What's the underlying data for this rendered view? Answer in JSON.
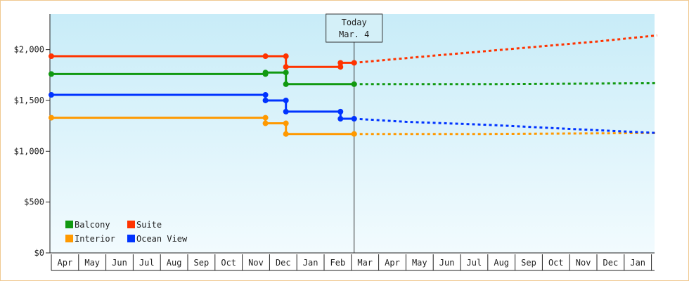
{
  "chart_data": {
    "type": "line",
    "title": "",
    "xlabel": "",
    "ylabel": "",
    "y_ticks": [
      "$0",
      "$500",
      "$1,000",
      "$1,500",
      "$2,000"
    ],
    "y_tick_values": [
      0,
      500,
      1000,
      1500,
      2000
    ],
    "ylim": [
      0,
      2350
    ],
    "months": [
      "Apr",
      "May",
      "Jun",
      "Jul",
      "Aug",
      "Sep",
      "Oct",
      "Nov",
      "Dec",
      "Jan",
      "Feb",
      "Mar",
      "Apr",
      "May",
      "Jun",
      "Jul",
      "Aug",
      "Sep",
      "Oct",
      "Nov",
      "Dec",
      "Jan"
    ],
    "x_unit": "month index from first Apr",
    "xlim": [
      0,
      22.2
    ],
    "today": {
      "label_line1": "Today",
      "label_line2": "Mar. 4",
      "x": 11.1
    },
    "grid": false,
    "legend_position": "bottom-left",
    "series": [
      {
        "name": "Balcony",
        "color": "#119911",
        "history": [
          [
            0,
            1760
          ],
          [
            7.85,
            1760
          ],
          [
            7.85,
            1775
          ],
          [
            8.6,
            1775
          ],
          [
            8.6,
            1660
          ],
          [
            11.1,
            1660
          ]
        ],
        "markers": [
          [
            0,
            1760
          ],
          [
            7.85,
            1760
          ],
          [
            7.85,
            1775
          ],
          [
            8.6,
            1775
          ],
          [
            8.6,
            1660
          ],
          [
            11.1,
            1660
          ]
        ],
        "forecast": [
          [
            11.1,
            1660
          ],
          [
            16,
            1660
          ],
          [
            22.2,
            1670
          ]
        ]
      },
      {
        "name": "Suite",
        "color": "#ff3300",
        "history": [
          [
            0,
            1935
          ],
          [
            7.85,
            1935
          ],
          [
            8.6,
            1935
          ],
          [
            8.6,
            1830
          ],
          [
            10.6,
            1830
          ],
          [
            10.6,
            1870
          ],
          [
            11.1,
            1870
          ]
        ],
        "markers": [
          [
            0,
            1935
          ],
          [
            7.85,
            1935
          ],
          [
            8.6,
            1935
          ],
          [
            8.6,
            1830
          ],
          [
            10.6,
            1830
          ],
          [
            10.6,
            1870
          ],
          [
            11.1,
            1870
          ]
        ],
        "forecast": [
          [
            11.1,
            1870
          ],
          [
            14,
            1940
          ],
          [
            17,
            2010
          ],
          [
            20,
            2080
          ],
          [
            22.2,
            2140
          ]
        ]
      },
      {
        "name": "Interior",
        "color": "#ff9900",
        "history": [
          [
            0,
            1330
          ],
          [
            7.85,
            1330
          ],
          [
            7.85,
            1275
          ],
          [
            8.6,
            1275
          ],
          [
            8.6,
            1170
          ],
          [
            11.1,
            1170
          ]
        ],
        "markers": [
          [
            0,
            1330
          ],
          [
            7.85,
            1330
          ],
          [
            7.85,
            1275
          ],
          [
            8.6,
            1275
          ],
          [
            8.6,
            1170
          ],
          [
            11.1,
            1170
          ]
        ],
        "forecast": [
          [
            11.1,
            1170
          ],
          [
            16,
            1170
          ],
          [
            22.2,
            1180
          ]
        ]
      },
      {
        "name": "Ocean View",
        "color": "#0033ff",
        "history": [
          [
            0,
            1555
          ],
          [
            7.85,
            1555
          ],
          [
            7.85,
            1500
          ],
          [
            8.6,
            1500
          ],
          [
            8.6,
            1390
          ],
          [
            10.6,
            1390
          ],
          [
            10.6,
            1320
          ],
          [
            11.1,
            1320
          ]
        ],
        "markers": [
          [
            0,
            1555
          ],
          [
            7.85,
            1555
          ],
          [
            7.85,
            1500
          ],
          [
            8.6,
            1500
          ],
          [
            8.6,
            1390
          ],
          [
            10.6,
            1390
          ],
          [
            10.6,
            1320
          ],
          [
            11.1,
            1320
          ]
        ],
        "forecast": [
          [
            11.1,
            1320
          ],
          [
            13,
            1290
          ],
          [
            16,
            1260
          ],
          [
            19,
            1220
          ],
          [
            22.2,
            1180
          ]
        ]
      }
    ],
    "legend_order": [
      "Balcony",
      "Suite",
      "Interior",
      "Ocean View"
    ]
  }
}
